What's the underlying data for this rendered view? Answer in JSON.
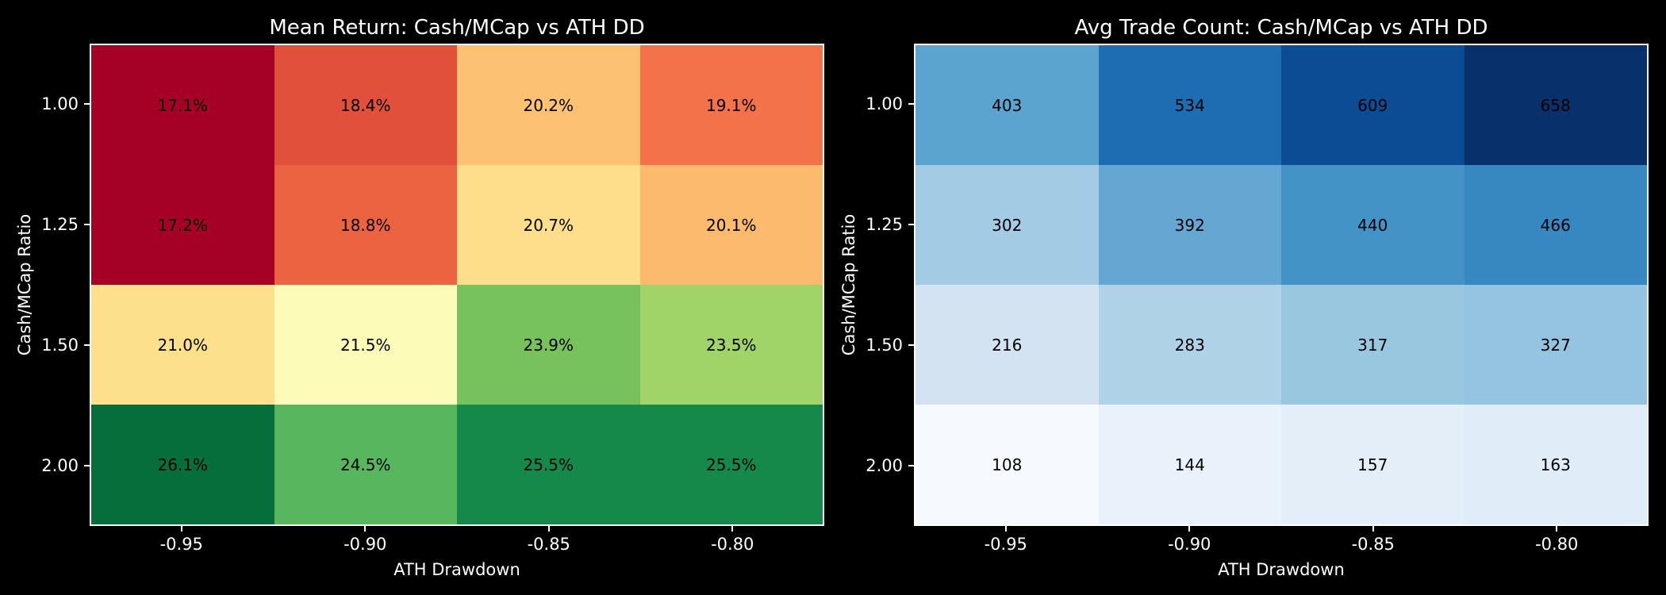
{
  "style": {
    "background": "#000000",
    "spine_color": "#ffffff",
    "text_color": "#ffffff",
    "annotation_color": "#000000"
  },
  "charts": [
    {
      "title": "Mean Return: Cash/MCap vs ATH DD",
      "xlabel": "ATH Drawdown",
      "ylabel": "Cash/MCap Ratio",
      "x_ticks": [
        "-0.95",
        "-0.90",
        "-0.85",
        "-0.80"
      ],
      "y_ticks": [
        "1.00",
        "1.25",
        "1.50",
        "2.00"
      ],
      "rows": [
        [
          {
            "label": "17.1%",
            "color": "#a50026"
          },
          {
            "label": "18.4%",
            "color": "#e1503a"
          },
          {
            "label": "20.2%",
            "color": "#fcc271"
          },
          {
            "label": "19.1%",
            "color": "#f2734a"
          }
        ],
        [
          {
            "label": "17.2%",
            "color": "#a50026"
          },
          {
            "label": "18.8%",
            "color": "#eb6341"
          },
          {
            "label": "20.7%",
            "color": "#fede8b"
          },
          {
            "label": "20.1%",
            "color": "#fcba6c"
          }
        ],
        [
          {
            "label": "21.0%",
            "color": "#fde08b"
          },
          {
            "label": "21.5%",
            "color": "#fcfcb8"
          },
          {
            "label": "23.9%",
            "color": "#78c25e"
          },
          {
            "label": "23.5%",
            "color": "#a0d468"
          }
        ],
        [
          {
            "label": "26.1%",
            "color": "#056e3a"
          },
          {
            "label": "24.5%",
            "color": "#58b65f"
          },
          {
            "label": "25.5%",
            "color": "#15894a"
          },
          {
            "label": "25.5%",
            "color": "#15894a"
          }
        ]
      ]
    },
    {
      "title": "Avg Trade Count: Cash/MCap vs ATH DD",
      "xlabel": "ATH Drawdown",
      "ylabel": "Cash/MCap Ratio",
      "x_ticks": [
        "-0.95",
        "-0.90",
        "-0.85",
        "-0.80"
      ],
      "y_ticks": [
        "1.00",
        "1.25",
        "1.50",
        "2.00"
      ],
      "rows": [
        [
          {
            "label": "403",
            "color": "#5ca4d0"
          },
          {
            "label": "534",
            "color": "#1e6db2"
          },
          {
            "label": "609",
            "color": "#0c4c95"
          },
          {
            "label": "658",
            "color": "#08306b"
          }
        ],
        [
          {
            "label": "302",
            "color": "#a3cbe3"
          },
          {
            "label": "392",
            "color": "#65a7d2"
          },
          {
            "label": "440",
            "color": "#4493c7"
          },
          {
            "label": "466",
            "color": "#3787c0"
          }
        ],
        [
          {
            "label": "216",
            "color": "#d3e3f2"
          },
          {
            "label": "283",
            "color": "#b0d2e7"
          },
          {
            "label": "317",
            "color": "#9ac7e0"
          },
          {
            "label": "327",
            "color": "#94c4df"
          }
        ],
        [
          {
            "label": "108",
            "color": "#f6fafe"
          },
          {
            "label": "144",
            "color": "#e9f2fa"
          },
          {
            "label": "157",
            "color": "#e3eef8"
          },
          {
            "label": "163",
            "color": "#e0ecf7"
          }
        ]
      ]
    }
  ],
  "chart_data": [
    {
      "type": "heatmap",
      "title": "Mean Return: Cash/MCap vs ATH DD",
      "xlabel": "ATH Drawdown",
      "ylabel": "Cash/MCap Ratio",
      "x": [
        "-0.95",
        "-0.90",
        "-0.85",
        "-0.80"
      ],
      "y": [
        "1.00",
        "1.25",
        "1.50",
        "2.00"
      ],
      "values": [
        [
          17.1,
          18.4,
          20.2,
          19.1
        ],
        [
          17.2,
          18.8,
          20.7,
          20.1
        ],
        [
          21.0,
          21.5,
          23.9,
          23.5
        ],
        [
          26.1,
          24.5,
          25.5,
          25.5
        ]
      ],
      "value_unit": "%",
      "colormap": "RdYlGn",
      "annotations": "black",
      "legend_position": "none",
      "grid": false
    },
    {
      "type": "heatmap",
      "title": "Avg Trade Count: Cash/MCap vs ATH DD",
      "xlabel": "ATH Drawdown",
      "ylabel": "Cash/MCap Ratio",
      "x": [
        "-0.95",
        "-0.90",
        "-0.85",
        "-0.80"
      ],
      "y": [
        "1.00",
        "1.25",
        "1.50",
        "2.00"
      ],
      "values": [
        [
          403,
          534,
          609,
          658
        ],
        [
          302,
          392,
          440,
          466
        ],
        [
          216,
          283,
          317,
          327
        ],
        [
          108,
          144,
          157,
          163
        ]
      ],
      "value_unit": "count",
      "colormap": "Blues",
      "annotations": "black",
      "legend_position": "none",
      "grid": false
    }
  ]
}
